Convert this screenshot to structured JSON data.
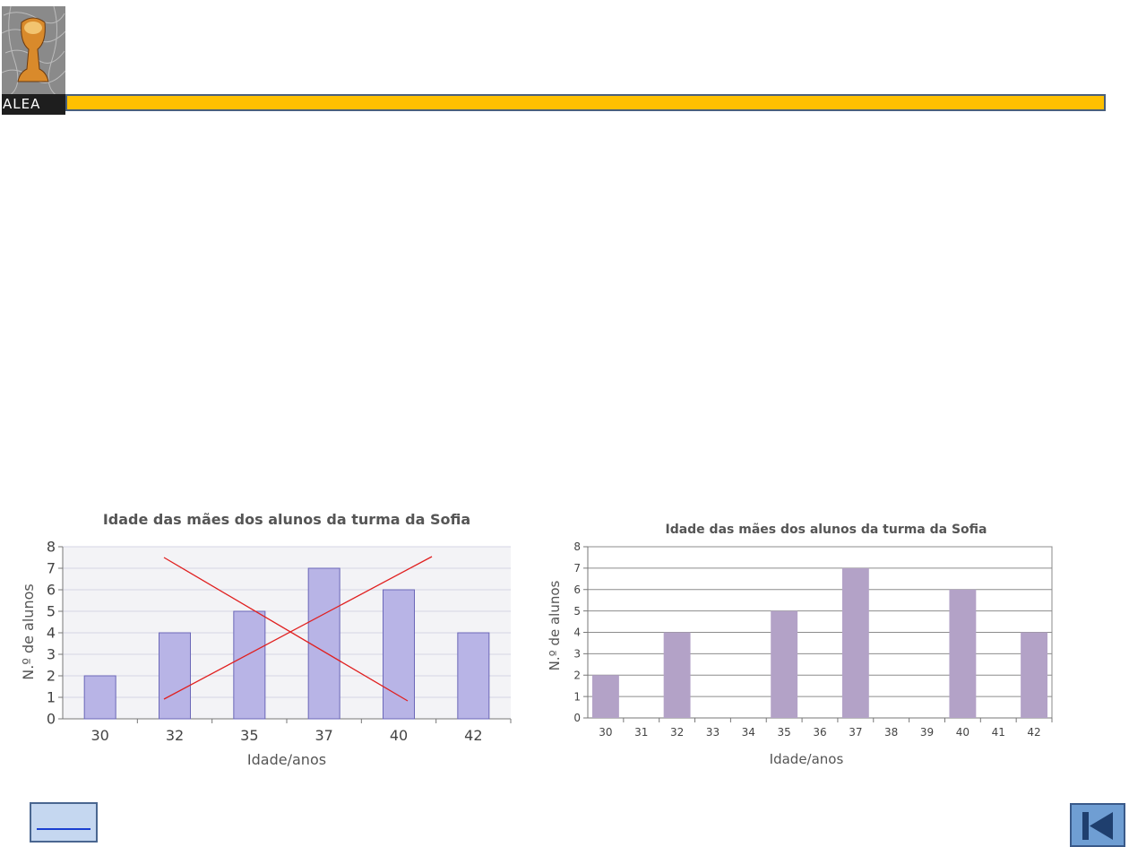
{
  "header": {
    "logo_text": "ALEA",
    "bar_color": "#ffc000"
  },
  "chart_data": [
    {
      "type": "bar",
      "title": "Idade das mães dos alunos da turma da Sofia",
      "xlabel": "Idade/anos",
      "ylabel": "N.º de alunos",
      "categories": [
        "30",
        "32",
        "35",
        "37",
        "40",
        "42"
      ],
      "values": [
        2,
        4,
        5,
        7,
        6,
        4
      ],
      "ylim": [
        0,
        8
      ],
      "yticks": [
        "0",
        "1",
        "2",
        "3",
        "4",
        "5",
        "6",
        "7",
        "8"
      ],
      "grid": true,
      "bar_color": "#b8b4e6",
      "annotation": "crossed-out",
      "annotation_color": "#e02020"
    },
    {
      "type": "bar",
      "title": "Idade das mães dos alunos da turma da Sofia",
      "xlabel": "Idade/anos",
      "ylabel": "N.º de alunos",
      "categories": [
        "30",
        "31",
        "32",
        "33",
        "34",
        "35",
        "36",
        "37",
        "38",
        "39",
        "40",
        "41",
        "42"
      ],
      "values": [
        2,
        0,
        4,
        0,
        0,
        5,
        0,
        7,
        0,
        0,
        6,
        0,
        4
      ],
      "ylim": [
        0,
        8
      ],
      "yticks": [
        "0",
        "1",
        "2",
        "3",
        "4",
        "5",
        "6",
        "7",
        "8"
      ],
      "grid": true,
      "bar_color": "#b3a2c7"
    }
  ],
  "footer": {
    "link_icon": "link-underline-icon",
    "back_icon": "skip-back-icon"
  }
}
